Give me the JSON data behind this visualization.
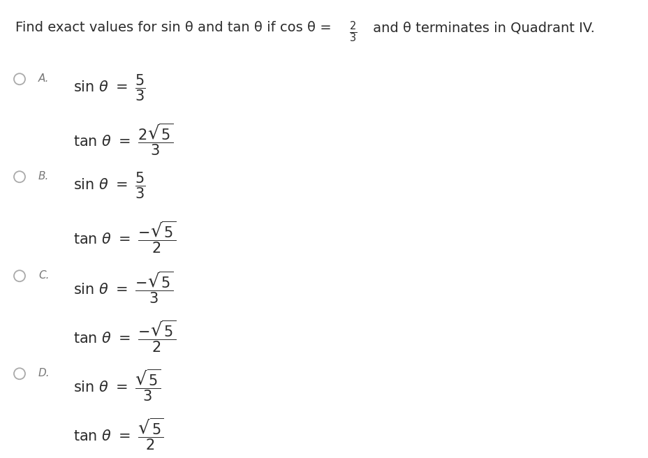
{
  "background_color": "#ffffff",
  "text_color": "#2b2b2b",
  "label_color": "#777777",
  "circle_color": "#aaaaaa",
  "title_fontsize": 14,
  "option_label_fontsize": 11,
  "expr_fontsize": 15,
  "title_left": "Find exact values for sin θ and tan θ if cos θ = ",
  "title_frac": "$\\frac{2}{3}$",
  "title_right": " and θ terminates in Quadrant IV.",
  "options": [
    {
      "label": "A.",
      "sin_expr": "$\\sin\\,\\theta\\ =\\ \\dfrac{5}{3}$",
      "tan_expr": "$\\tan\\,\\theta\\ =\\ \\dfrac{2\\sqrt{5}}{3}$"
    },
    {
      "label": "B.",
      "sin_expr": "$\\sin\\,\\theta\\ =\\ \\dfrac{5}{3}$",
      "tan_expr": "$\\tan\\,\\theta\\ =\\ \\dfrac{-\\sqrt{5}}{2}$"
    },
    {
      "label": "C.",
      "sin_expr": "$\\sin\\,\\theta\\ =\\ \\dfrac{-\\sqrt{5}}{3}$",
      "tan_expr": "$\\tan\\,\\theta\\ =\\ \\dfrac{-\\sqrt{5}}{2}$"
    },
    {
      "label": "D.",
      "sin_expr": "$\\sin\\,\\theta\\ =\\ \\dfrac{\\sqrt{5}}{3}$",
      "tan_expr": "$\\tan\\,\\theta\\ =\\ \\dfrac{\\sqrt{5}}{2}$"
    }
  ]
}
